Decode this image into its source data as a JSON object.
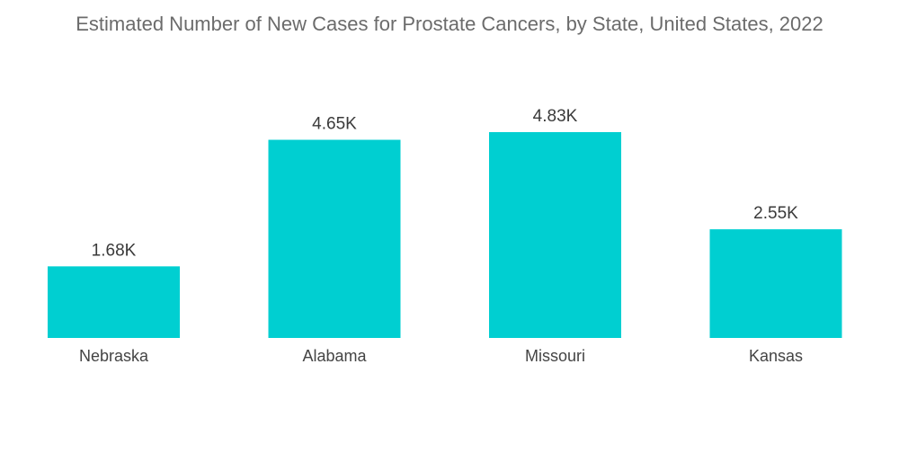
{
  "chart_data": {
    "type": "bar",
    "title": "Estimated Number of New Cases for Prostate Cancers, by State, United States, 2022",
    "xlabel": "",
    "ylabel": "",
    "categories": [
      "Nebraska",
      "Alabama",
      "Missouri",
      "Kansas"
    ],
    "values": [
      1.68,
      4.65,
      4.83,
      2.55
    ],
    "value_labels": [
      "1.68K",
      "4.65K",
      "4.83K",
      "2.55K"
    ],
    "ylim": [
      0,
      5
    ],
    "grid": false,
    "legend": "none",
    "bar_color": "#00cfd1"
  }
}
